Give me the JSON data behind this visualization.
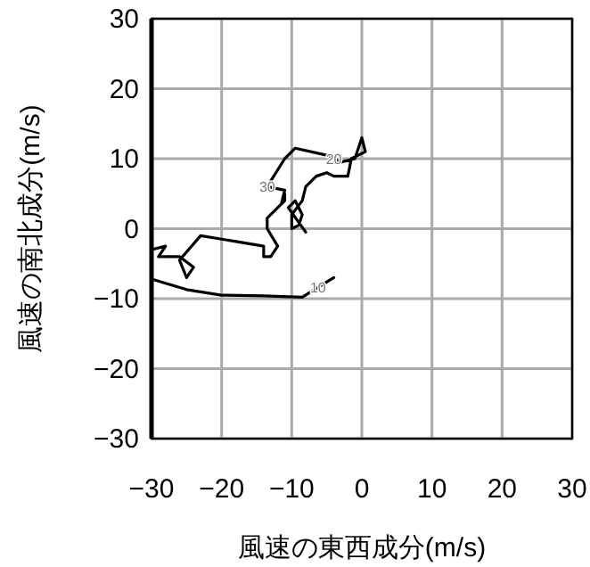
{
  "chart_data": {
    "type": "line",
    "xlabel": "風速の東西成分(m/s)",
    "ylabel": "風速の南北成分(m/s)",
    "xlim": [
      -30,
      30
    ],
    "ylim": [
      -30,
      30
    ],
    "xticks": [
      -30,
      -20,
      -10,
      0,
      10,
      20,
      30
    ],
    "yticks": [
      -30,
      -20,
      -10,
      0,
      10,
      20,
      30
    ],
    "grid": true,
    "series": [
      {
        "color": "#000000",
        "x": [
          -4,
          -8.5,
          -14,
          -20,
          -25,
          -30,
          null,
          -30,
          -28,
          -29,
          -26,
          -24,
          -25,
          -26,
          -23,
          -20,
          -17,
          -14,
          -14,
          -13,
          -12,
          -13.5,
          -13.5,
          -11,
          -11,
          -11.5,
          -11,
          -13.5,
          -11,
          -9.5,
          -5,
          -3,
          -1,
          0,
          0.5,
          -1.5,
          -2,
          -4,
          -5,
          -6.5,
          -8,
          -8.5,
          -10,
          -10,
          -9,
          -8.5,
          -9.5,
          -10.5,
          -8
        ],
        "values": [
          -7,
          -9.8,
          -9.6,
          -9.5,
          -8.7,
          -7.2,
          null,
          -3,
          -2.5,
          -4,
          -4,
          -5.5,
          -7,
          -4.5,
          -1,
          -1.5,
          -2,
          -2.5,
          -4,
          -4,
          -2.5,
          0,
          1.5,
          4,
          5,
          3.5,
          5.5,
          6,
          10,
          11.5,
          10.5,
          9.5,
          10,
          13,
          11,
          10,
          7.5,
          7.5,
          8,
          7.5,
          6,
          4,
          2,
          0,
          0.5,
          2,
          4,
          3,
          -0.5
        ]
      }
    ],
    "annotations": [
      {
        "text": "20",
        "x": -4,
        "y": 10
      },
      {
        "text": "30",
        "x": -13.5,
        "y": 6
      },
      {
        "text": "10",
        "x": -6.25,
        "y": -8.4
      }
    ]
  }
}
